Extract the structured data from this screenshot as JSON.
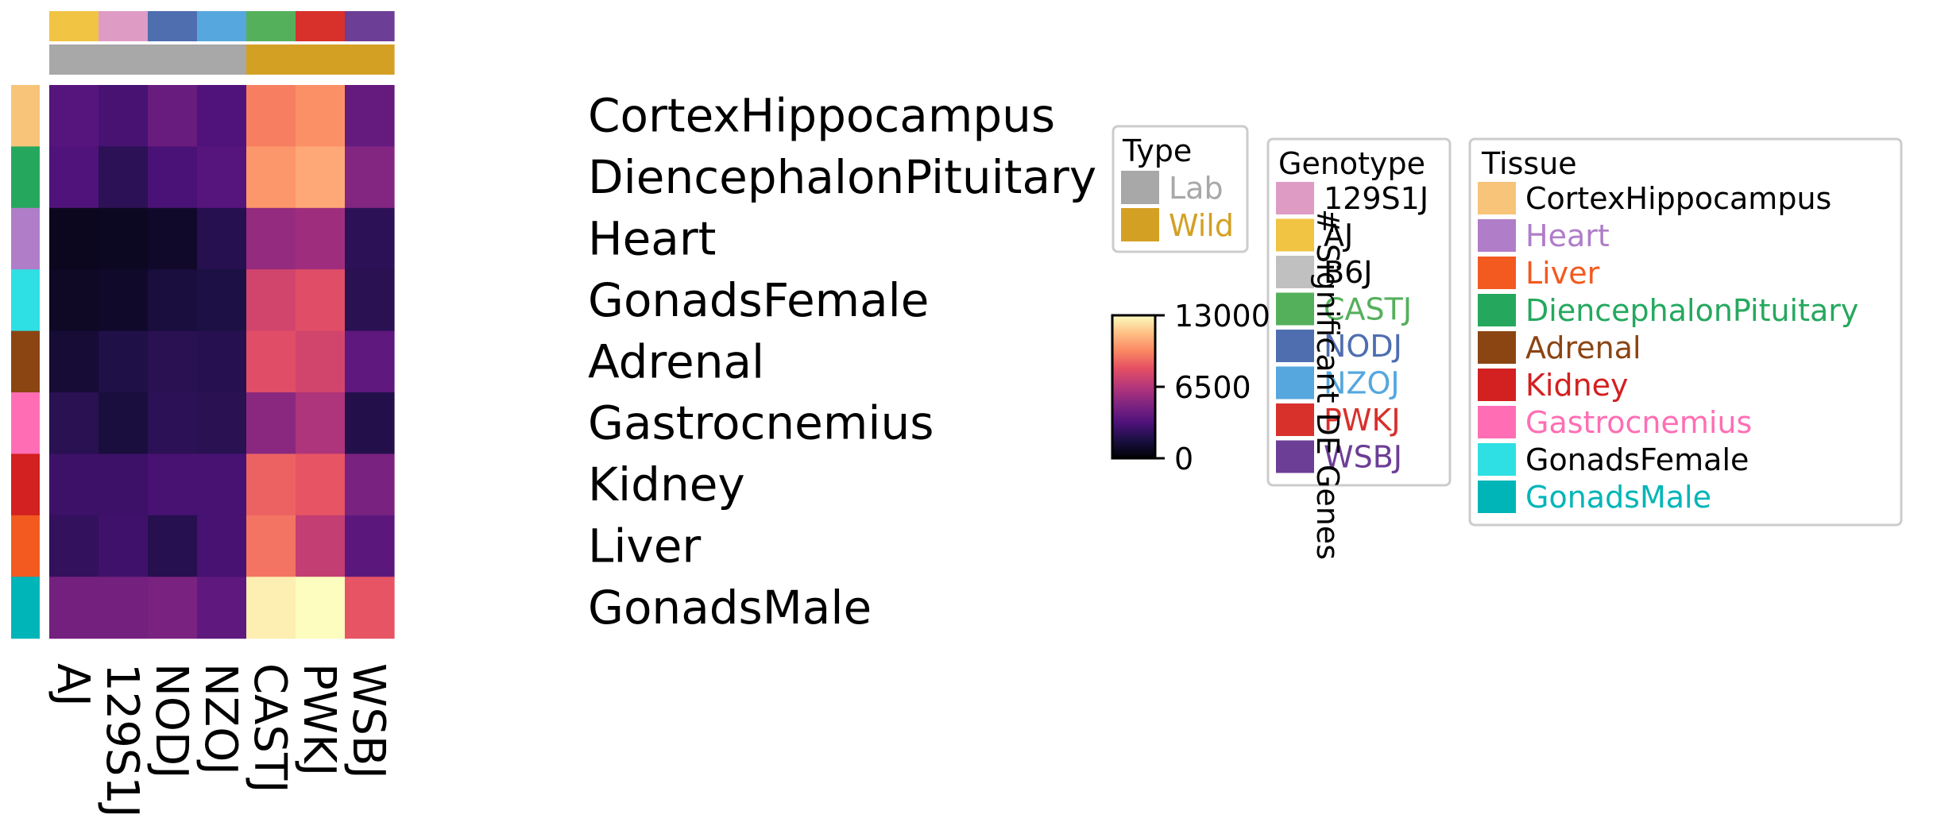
{
  "chart_data": {
    "type": "heatmap",
    "columns": [
      "AJ",
      "129S1J",
      "NODJ",
      "NZOJ",
      "CASTJ",
      "PWKJ",
      "WSBJ"
    ],
    "rows": [
      "CortexHippocampus",
      "DiencephalonPituitary",
      "Heart",
      "GonadsFemale",
      "Adrenal",
      "Gastrocnemius",
      "Kidney",
      "Liver",
      "GonadsMale"
    ],
    "values": [
      [
        3500,
        3000,
        4100,
        3300,
        9500,
        10000,
        4000
      ],
      [
        3300,
        2200,
        3100,
        3500,
        10200,
        10700,
        5000
      ],
      [
        700,
        800,
        1000,
        2000,
        5500,
        5800,
        2200
      ],
      [
        900,
        1000,
        1500,
        1700,
        7500,
        8000,
        2100
      ],
      [
        1300,
        1800,
        2100,
        2000,
        8000,
        7500,
        3800
      ],
      [
        2100,
        1500,
        2200,
        2100,
        5200,
        6300,
        1900
      ],
      [
        2700,
        2700,
        3000,
        3000,
        8700,
        8300,
        4700
      ],
      [
        2400,
        2800,
        2000,
        3000,
        9200,
        7000,
        3700
      ],
      [
        4500,
        4500,
        4700,
        3800,
        12600,
        13000,
        8300
      ]
    ],
    "column_type_colors": [
      "#a8a8a8",
      "#a8a8a8",
      "#a8a8a8",
      "#a8a8a8",
      "#d4a024",
      "#d4a024",
      "#d4a024"
    ],
    "column_genotype_colors": [
      "#f2c443",
      "#de9cc5",
      "#4f6eb0",
      "#55a7de",
      "#55b05c",
      "#d8302b",
      "#6c3e96"
    ],
    "row_tissue_colors": [
      "#f7c47a",
      "#25a85e",
      "#b07dc8",
      "#2ee0e3",
      "#8b4513",
      "#ff6eb4",
      "#d32020",
      "#f25a20",
      "#00b5b8"
    ],
    "colorbar": {
      "min": 0,
      "max": 13000,
      "ticks": [
        "0",
        "6500",
        "13000"
      ],
      "label": "# Significant DE Genes",
      "colormap": "magma"
    },
    "legends": {
      "type": {
        "title": "Type",
        "items": [
          {
            "label": "Lab",
            "color": "#a8a8a8"
          },
          {
            "label": "Wild",
            "color": "#d4a024"
          }
        ]
      },
      "genotype": {
        "title": "Genotype",
        "items": [
          {
            "label": "129S1J",
            "color": "#de9cc5",
            "text_color": "#000000"
          },
          {
            "label": "AJ",
            "color": "#f2c443",
            "text_color": "#000000"
          },
          {
            "label": "B6J",
            "color": "#c0c0c0",
            "text_color": "#000000"
          },
          {
            "label": "CASTJ",
            "color": "#55b05c",
            "text_color": "#55b05c"
          },
          {
            "label": "NODJ",
            "color": "#4f6eb0",
            "text_color": "#4f6eb0"
          },
          {
            "label": "NZOJ",
            "color": "#55a7de",
            "text_color": "#55a7de"
          },
          {
            "label": "PWKJ",
            "color": "#d8302b",
            "text_color": "#d8302b"
          },
          {
            "label": "WSBJ",
            "color": "#6c3e96",
            "text_color": "#6c3e96"
          }
        ]
      },
      "tissue": {
        "title": "Tissue",
        "items": [
          {
            "label": "CortexHippocampus",
            "color": "#f7c47a",
            "text_color": "#000000"
          },
          {
            "label": "Heart",
            "color": "#b07dc8",
            "text_color": "#b07dc8"
          },
          {
            "label": "Liver",
            "color": "#f25a20",
            "text_color": "#f25a20"
          },
          {
            "label": "DiencephalonPituitary",
            "color": "#25a85e",
            "text_color": "#25a85e"
          },
          {
            "label": "Adrenal",
            "color": "#8b4513",
            "text_color": "#8b4513"
          },
          {
            "label": "Kidney",
            "color": "#d32020",
            "text_color": "#d32020"
          },
          {
            "label": "Gastrocnemius",
            "color": "#ff6eb4",
            "text_color": "#ff6eb4"
          },
          {
            "label": "GonadsFemale",
            "color": "#2ee0e3",
            "text_color": "#000000"
          },
          {
            "label": "GonadsMale",
            "color": "#00b5b8",
            "text_color": "#00b5b8"
          }
        ]
      }
    }
  }
}
